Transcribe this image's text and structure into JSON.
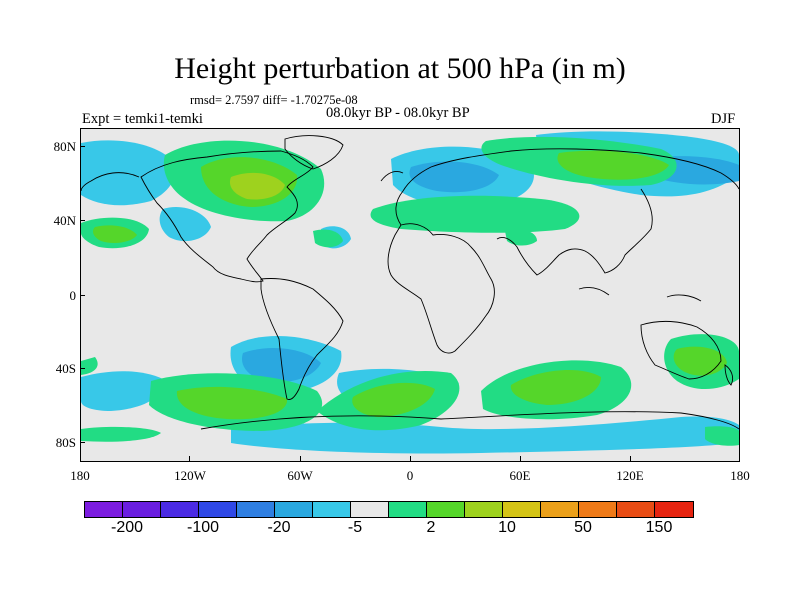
{
  "header": {
    "title": "Height perturbation at 500 hPa (in m)",
    "stats": "rmsd= 2.7597 diff= -1.70275e-08",
    "period": "08.0kyr BP - 08.0kyr BP",
    "expt": "Expt = temki1-temki",
    "season": "DJF"
  },
  "axes": {
    "lat_labels": [
      "80N",
      "40N",
      "0",
      "40S",
      "80S"
    ],
    "lon_labels": [
      "180",
      "120W",
      "60W",
      "0",
      "60E",
      "120E",
      "180"
    ]
  },
  "colorbar": {
    "colors": [
      "#7c1ce0",
      "#6a1ee0",
      "#4b2be4",
      "#2f48e6",
      "#2f7fe2",
      "#2aa8e0",
      "#38c8e8",
      "#e8e8e8",
      "#22dc84",
      "#55d62a",
      "#9ed21e",
      "#d4c416",
      "#eba01a",
      "#ef7a18",
      "#e84c14",
      "#e62410"
    ],
    "labels": [
      "-200",
      "-100",
      "-20",
      "-5",
      "2",
      "10",
      "50",
      "150"
    ]
  },
  "legend_colors": {
    "ocean_bg": "#e8e8e8",
    "neg_weak": "#38c8e8",
    "neg_mid": "#2aa8e0",
    "pos_weak": "#22dc84",
    "pos_mid": "#55d62a",
    "pos_strong": "#9ed21e"
  }
}
